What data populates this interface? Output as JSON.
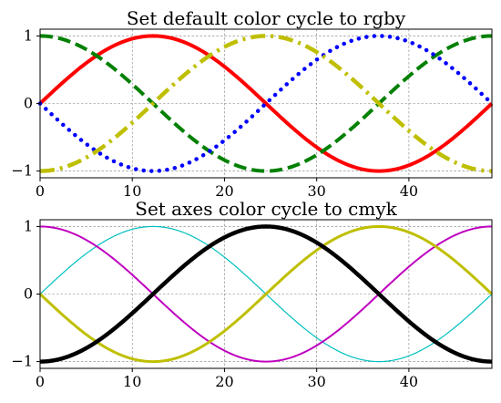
{
  "chart_data": [
    {
      "type": "line",
      "title": "Set default color cycle to rgby",
      "xlim": [
        0,
        49
      ],
      "ylim": [
        -1.1,
        1.1
      ],
      "xticks": [
        0,
        10,
        20,
        30,
        40
      ],
      "xtick_labels": [
        "0",
        "10",
        "20",
        "30",
        "40"
      ],
      "yticks": [
        -1,
        0,
        1
      ],
      "ytick_labels": [
        "−1",
        "0",
        "1"
      ],
      "grid": true,
      "x": [
        0,
        1,
        2,
        3,
        4,
        5,
        6,
        7,
        8,
        9,
        10,
        11,
        12,
        13,
        14,
        15,
        16,
        17,
        18,
        19,
        20,
        21,
        22,
        23,
        24,
        25,
        26,
        27,
        28,
        29,
        30,
        31,
        32,
        33,
        34,
        35,
        36,
        37,
        38,
        39,
        40,
        41,
        42,
        43,
        44,
        45,
        46,
        47,
        48,
        49
      ],
      "series": [
        {
          "color": "#ff0000",
          "linestyle": "solid",
          "formula": "sin(2*pi*x/49)"
        },
        {
          "color": "#008000",
          "linestyle": "dashed",
          "formula": "cos(2*pi*x/49)"
        },
        {
          "color": "#0000ff",
          "linestyle": "dotted",
          "formula": "-sin(2*pi*x/49)"
        },
        {
          "color": "#bfbf00",
          "linestyle": "dashdot",
          "formula": "-cos(2*pi*x/49)"
        }
      ]
    },
    {
      "type": "line",
      "title": "Set axes color cycle to cmyk",
      "xlim": [
        0,
        49
      ],
      "ylim": [
        -1.1,
        1.1
      ],
      "xticks": [
        0,
        10,
        20,
        30,
        40
      ],
      "xtick_labels": [
        "0",
        "10",
        "20",
        "30",
        "40"
      ],
      "yticks": [
        -1,
        0,
        1
      ],
      "ytick_labels": [
        "−1",
        "0",
        "1"
      ],
      "grid": true,
      "x": [
        0,
        1,
        2,
        3,
        4,
        5,
        6,
        7,
        8,
        9,
        10,
        11,
        12,
        13,
        14,
        15,
        16,
        17,
        18,
        19,
        20,
        21,
        22,
        23,
        24,
        25,
        26,
        27,
        28,
        29,
        30,
        31,
        32,
        33,
        34,
        35,
        36,
        37,
        38,
        39,
        40,
        41,
        42,
        43,
        44,
        45,
        46,
        47,
        48,
        49
      ],
      "series": [
        {
          "color": "#00bfbf",
          "linestyle": "solid",
          "formula": "sin(2*pi*x/49)"
        },
        {
          "color": "#bf00bf",
          "linestyle": "solid",
          "formula": "cos(2*pi*x/49)"
        },
        {
          "color": "#bfbf00",
          "linestyle": "solid",
          "formula": "-sin(2*pi*x/49)"
        },
        {
          "color": "#000000",
          "linestyle": "solid",
          "formula": "-cos(2*pi*x/49)"
        }
      ]
    }
  ]
}
